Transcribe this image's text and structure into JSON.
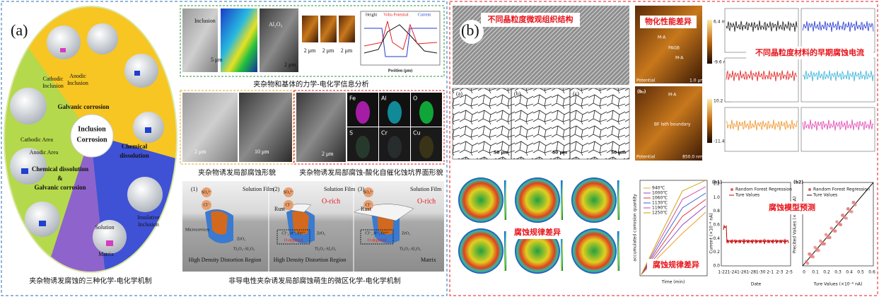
{
  "panel_a": {
    "label": "(a)",
    "mechanism": {
      "center": [
        "Inclusion",
        "Corrosion"
      ],
      "galvanic": "Galvanic corrosion",
      "chemical": [
        "Chemical",
        "dissolution"
      ],
      "combined": [
        "Chemical dissolution",
        "&",
        "Galvanic corrosion"
      ],
      "labels": [
        "Cathodic",
        "Inclusion",
        "Anodic",
        "Inclusion",
        "Cathodic Area",
        "Anodic Area",
        "Solution",
        "Matrix",
        "Insulative",
        "Inclusion"
      ]
    },
    "caption_left": "夹杂物诱发腐蚀的三种化学-电化学机制",
    "analysis": {
      "labels": [
        "Inclusion",
        "5 μm",
        "Al₂O₃",
        "2 μm",
        "2 μm",
        "2 μm",
        "2 μm",
        "Height",
        "Volta Potential",
        "Current",
        "Position (μm)"
      ],
      "caption": "夹杂物和基体的力学-电化学信息分析"
    },
    "morphology": {
      "labels": [
        "2 μm",
        "10 μm",
        "2 μm"
      ],
      "elements": [
        "Fe",
        "Al",
        "O",
        "S",
        "Cr",
        "Cu"
      ],
      "captions": [
        "夹杂物诱发局部腐蚀形貌",
        "夹杂物诱发局部腐蚀-酸化自催化蚀坑界面形貌"
      ]
    },
    "schematic": {
      "steps": [
        "(1)",
        "(2)",
        "(3)"
      ],
      "film": "Solution Film",
      "sulfate": "SO₄²⁻",
      "chloride": "Cl⁻",
      "o_rich": "O-rich",
      "rust": "Rust",
      "microcrevices": "Microcrevices",
      "zro2": "ZrO₂",
      "ti_al": "Ti₂O₃·Al₂O₃",
      "distortion": "High Density Distortion Region",
      "matrix": "Matrix",
      "o_depleted": "O-depleted",
      "ions": "Cl⁻, H⁺, Fe²⁺",
      "caption": "非导电性夹杂诱发局部腐蚀萌生的微区化学-电化学机制"
    }
  },
  "panel_b": {
    "label": "(b)",
    "microstructure": {
      "title": "不同晶粒度微观组织结构",
      "subpanels": [
        "(a)",
        "(b)",
        "(c)"
      ],
      "scale": "50 μm"
    },
    "kpfm": {
      "title": "物化性能差异",
      "labels": [
        "M-A",
        "PAGB",
        "M-A",
        "M-A",
        "BF lath boundary",
        "Potential",
        "Potential",
        "(b₂)"
      ],
      "colorbar": [
        "6.4 mV",
        "-9.6 mV",
        "10.2 mV",
        "-11.4 mV"
      ],
      "scales": [
        "1.0 μm",
        "850.0 nm"
      ]
    },
    "currents": {
      "title": "不同晶粒度材料的早期腐蚀电流"
    },
    "maps": {
      "title": "腐蚀规律差异"
    },
    "accumulation": {
      "title": "腐蚀规律差异",
      "legend": [
        "940℃",
        "1000℃",
        "1060℃",
        "1130℃",
        "1190℃",
        "1250℃"
      ],
      "y_label": "accumulated corrosion quantity",
      "x_label": "Time (min)"
    },
    "prediction": {
      "title": "腐蚀模型预测",
      "left": {
        "label": "(b1)",
        "legend": [
          "Random Forest Regression",
          "Ture Values"
        ],
        "y_label": "Current (×10⁻⁶ nA)",
        "x_label": "Date",
        "xticks": [
          "1-22",
          "1-24",
          "1-26",
          "1-28",
          "1-30",
          "2-1",
          "2-3",
          "2-5"
        ],
        "yticks": [
          "1.2",
          "1.0",
          "0.8",
          "0.6",
          "0.4",
          "0.2",
          "0.0"
        ]
      },
      "right": {
        "label": "(b2)",
        "legend": [
          "Random Forest Regression",
          "Ture Values"
        ],
        "y_label": "Precited Values (×10⁻⁶ nA)",
        "x_label": "Ture Values (×10⁻⁶ nA)",
        "xticks": [
          "0",
          "0.1",
          "0.2",
          "0.3",
          "0.4",
          "0.5",
          "0.6"
        ]
      }
    }
  }
}
